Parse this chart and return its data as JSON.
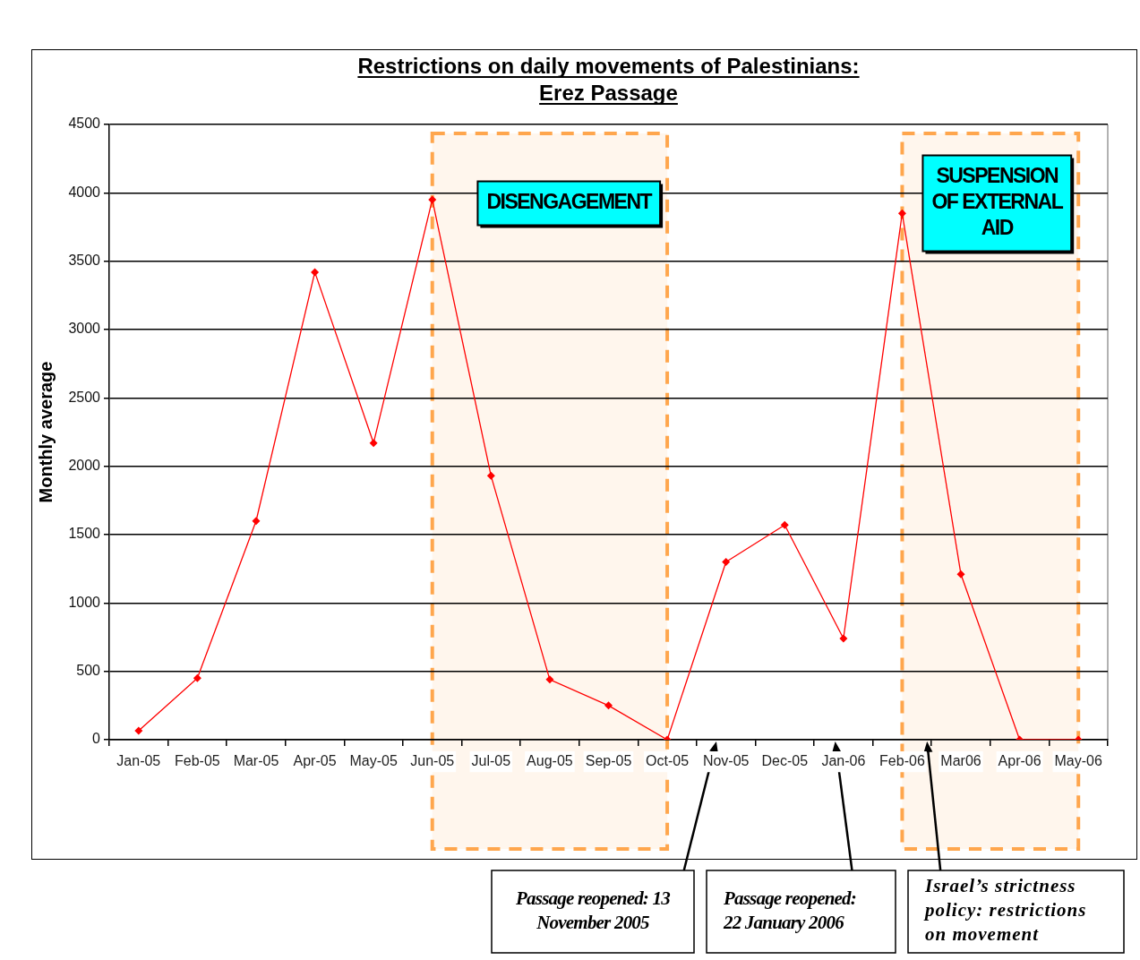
{
  "chart_data": {
    "type": "line",
    "title": "Restrictions on daily movements of Palestinians: Erez Passage",
    "ylabel": "Monthly average",
    "categories": [
      "Jan-05",
      "Feb-05",
      "Mar-05",
      "Apr-05",
      "May-05",
      "Jun-05",
      "Jul-05",
      "Aug-05",
      "Sep-05",
      "Oct-05",
      "Nov-05",
      "Dec-05",
      "Jan-06",
      "Feb-06",
      "Mar06",
      "Apr-06",
      "May-06"
    ],
    "values": [
      65,
      450,
      1600,
      3420,
      2170,
      3950,
      1930,
      440,
      250,
      0,
      1300,
      1570,
      740,
      3850,
      1210,
      0,
      0
    ],
    "color": "#ff0000",
    "ylim": [
      0,
      4500
    ],
    "yticks": [
      0,
      500,
      1000,
      1500,
      2000,
      2500,
      3000,
      3500,
      4000,
      4500
    ],
    "grid": "y",
    "legend": false,
    "marker": "diamond",
    "line_style": "solid",
    "bands": [
      {
        "axis": "x",
        "from": "Jun-05",
        "to": "Oct-05",
        "label": "DISENGAGEMENT",
        "color": "#ffa64d"
      },
      {
        "axis": "x",
        "from": "Feb-06",
        "to": "May-06",
        "label": "SUSPENSION OF EXTERNAL AID",
        "color": "#ffa64d"
      }
    ],
    "annotations": [
      "Passage reopened: 13 November 2005",
      "Passage reopened: 22 January 2006",
      "Israel’s strictness policy: restrictions on movement"
    ]
  }
}
